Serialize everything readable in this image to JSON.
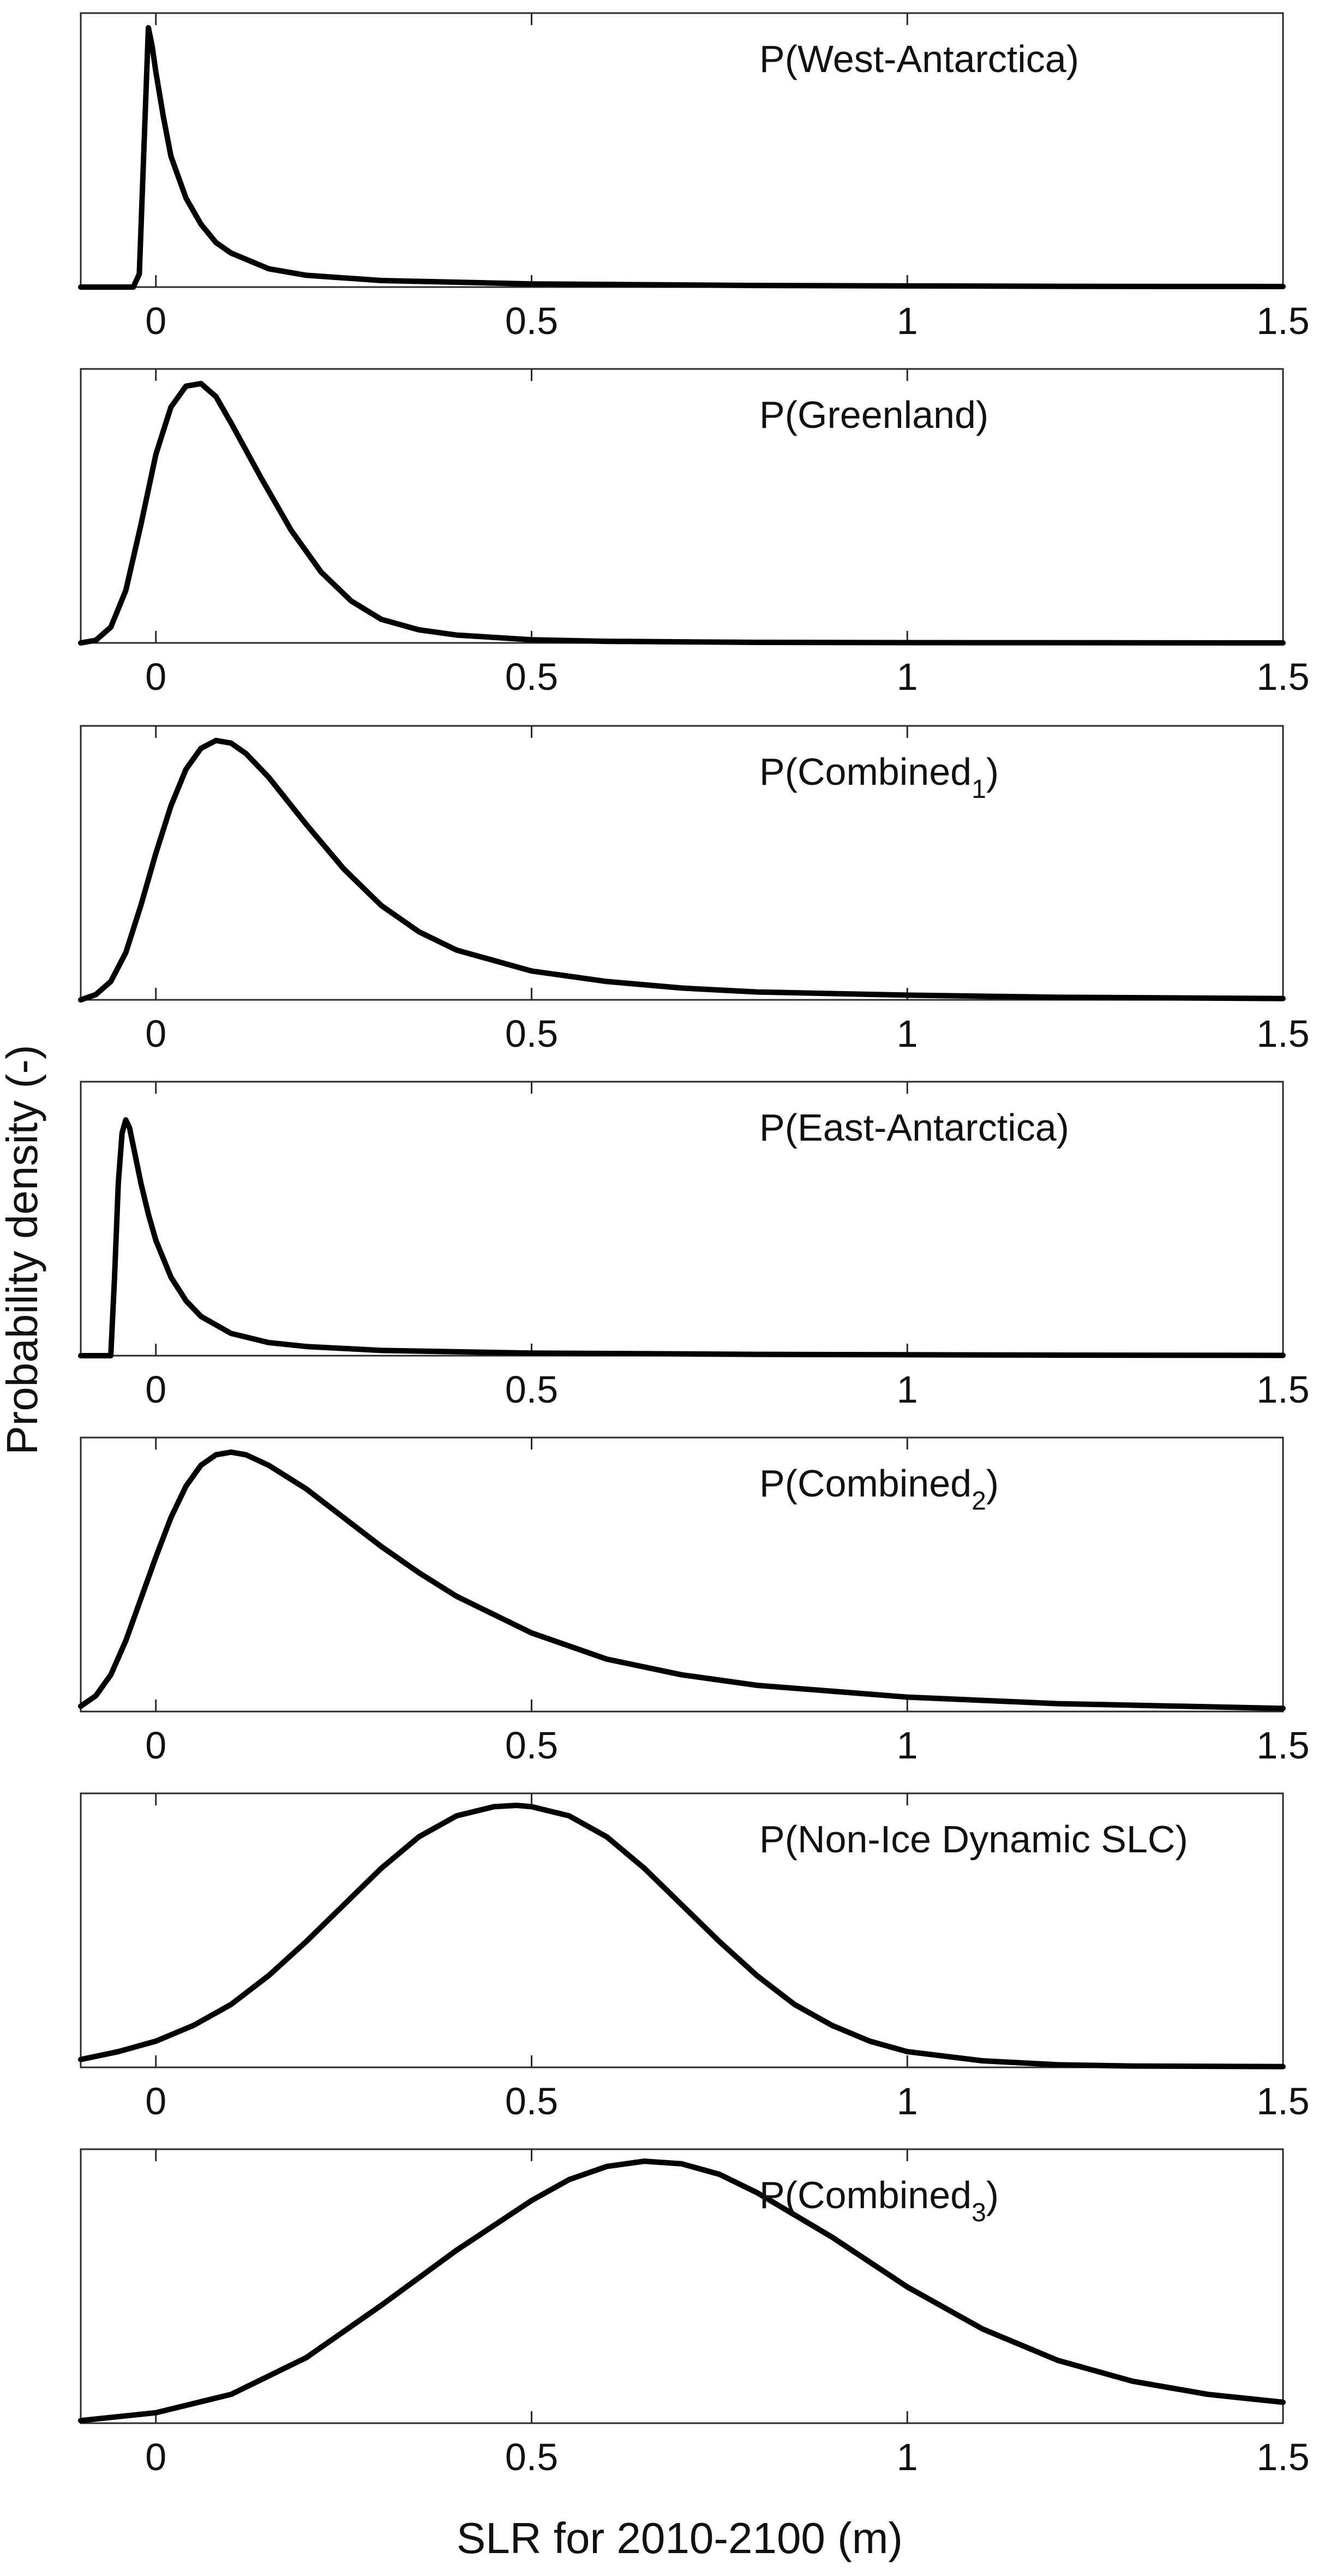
{
  "figure": {
    "ylabel": "Probability density (-)",
    "xlabel": "SLR for 2010-2100 (m)"
  },
  "chart_data": [
    {
      "type": "line",
      "title": "P(West-Antarctica)",
      "title_parts": {
        "main": "P(West-Antarctica)",
        "sub": "",
        "tail": ""
      },
      "xlim": [
        -0.1,
        1.5
      ],
      "ylim": [
        0,
        1
      ],
      "xticks": [
        0,
        0.5,
        1,
        1.5
      ],
      "xtick_labels": [
        "0",
        "0.5",
        "1",
        "1.5"
      ],
      "series": [
        {
          "name": "P(West-Antarctica)",
          "x": [
            -0.1,
            -0.03,
            -0.022,
            -0.015,
            -0.01,
            -0.005,
            0.0,
            0.01,
            0.02,
            0.04,
            0.06,
            0.08,
            0.1,
            0.15,
            0.2,
            0.3,
            0.5,
            0.8,
            1.2,
            1.5
          ],
          "y": [
            0,
            0,
            0.05,
            0.6,
            0.99,
            0.92,
            0.82,
            0.65,
            0.5,
            0.34,
            0.24,
            0.17,
            0.13,
            0.07,
            0.045,
            0.025,
            0.012,
            0.006,
            0.003,
            0.002
          ]
        }
      ]
    },
    {
      "type": "line",
      "title": "P(Greenland)",
      "title_parts": {
        "main": "P(Greenland)",
        "sub": "",
        "tail": ""
      },
      "xlim": [
        -0.1,
        1.5
      ],
      "ylim": [
        0,
        1
      ],
      "xticks": [
        0,
        0.5,
        1,
        1.5
      ],
      "xtick_labels": [
        "0",
        "0.5",
        "1",
        "1.5"
      ],
      "series": [
        {
          "name": "P(Greenland)",
          "x": [
            -0.1,
            -0.08,
            -0.06,
            -0.04,
            -0.02,
            0.0,
            0.02,
            0.04,
            0.06,
            0.08,
            0.1,
            0.14,
            0.18,
            0.22,
            0.26,
            0.3,
            0.35,
            0.4,
            0.5,
            0.6,
            0.8,
            1.0,
            1.5
          ],
          "y": [
            0,
            0.01,
            0.06,
            0.2,
            0.45,
            0.72,
            0.9,
            0.98,
            0.99,
            0.94,
            0.84,
            0.63,
            0.43,
            0.27,
            0.16,
            0.09,
            0.05,
            0.03,
            0.012,
            0.006,
            0.002,
            0.001,
            0
          ]
        }
      ]
    },
    {
      "type": "line",
      "title": "P(Combined1)",
      "title_parts": {
        "main": "P(Combined",
        "sub": "1",
        "tail": ")"
      },
      "xlim": [
        -0.1,
        1.5
      ],
      "ylim": [
        0,
        1
      ],
      "xticks": [
        0,
        0.5,
        1,
        1.5
      ],
      "xtick_labels": [
        "0",
        "0.5",
        "1",
        "1.5"
      ],
      "series": [
        {
          "name": "P(Combined1)",
          "x": [
            -0.1,
            -0.08,
            -0.06,
            -0.04,
            -0.02,
            0.0,
            0.02,
            0.04,
            0.06,
            0.08,
            0.1,
            0.12,
            0.15,
            0.2,
            0.25,
            0.3,
            0.35,
            0.4,
            0.5,
            0.6,
            0.7,
            0.8,
            1.0,
            1.2,
            1.5
          ],
          "y": [
            0,
            0.02,
            0.07,
            0.18,
            0.36,
            0.56,
            0.74,
            0.88,
            0.96,
            0.99,
            0.98,
            0.94,
            0.85,
            0.67,
            0.5,
            0.36,
            0.26,
            0.19,
            0.11,
            0.07,
            0.045,
            0.03,
            0.018,
            0.01,
            0.005
          ]
        }
      ]
    },
    {
      "type": "line",
      "title": "P(East-Antarctica)",
      "title_parts": {
        "main": "P(East-Antarctica)",
        "sub": "",
        "tail": ""
      },
      "xlim": [
        -0.1,
        1.5
      ],
      "ylim": [
        0,
        1
      ],
      "xticks": [
        0,
        0.5,
        1,
        1.5
      ],
      "xtick_labels": [
        "0",
        "0.5",
        "1",
        "1.5"
      ],
      "series": [
        {
          "name": "P(East-Antarctica)",
          "x": [
            -0.1,
            -0.06,
            -0.055,
            -0.05,
            -0.045,
            -0.04,
            -0.035,
            -0.03,
            -0.02,
            -0.01,
            0.0,
            0.02,
            0.04,
            0.06,
            0.1,
            0.15,
            0.2,
            0.3,
            0.5,
            0.8,
            1.2,
            1.5
          ],
          "y": [
            0,
            0,
            0.3,
            0.66,
            0.85,
            0.9,
            0.87,
            0.8,
            0.66,
            0.54,
            0.44,
            0.3,
            0.21,
            0.15,
            0.085,
            0.05,
            0.035,
            0.02,
            0.01,
            0.005,
            0.002,
            0.001
          ]
        }
      ]
    },
    {
      "type": "line",
      "title": "P(Combined2)",
      "title_parts": {
        "main": "P(Combined",
        "sub": "2",
        "tail": ")"
      },
      "xlim": [
        -0.1,
        1.5
      ],
      "ylim": [
        0,
        1
      ],
      "xticks": [
        0,
        0.5,
        1,
        1.5
      ],
      "xtick_labels": [
        "0",
        "0.5",
        "1",
        "1.5"
      ],
      "series": [
        {
          "name": "P(Combined2)",
          "x": [
            -0.1,
            -0.08,
            -0.06,
            -0.04,
            -0.02,
            0.0,
            0.02,
            0.04,
            0.06,
            0.08,
            0.1,
            0.12,
            0.15,
            0.2,
            0.25,
            0.3,
            0.35,
            0.4,
            0.5,
            0.6,
            0.7,
            0.8,
            1.0,
            1.2,
            1.5
          ],
          "y": [
            0.02,
            0.06,
            0.14,
            0.27,
            0.43,
            0.59,
            0.74,
            0.86,
            0.94,
            0.98,
            0.99,
            0.98,
            0.94,
            0.85,
            0.74,
            0.63,
            0.53,
            0.44,
            0.3,
            0.2,
            0.14,
            0.1,
            0.055,
            0.03,
            0.012
          ]
        }
      ]
    },
    {
      "type": "line",
      "title": "P(Non-Ice Dynamic SLC)",
      "title_parts": {
        "main": "P(Non-Ice Dynamic SLC)",
        "sub": "",
        "tail": ""
      },
      "xlim": [
        -0.1,
        1.5
      ],
      "ylim": [
        0,
        1
      ],
      "xticks": [
        0,
        0.5,
        1,
        1.5
      ],
      "xtick_labels": [
        "0",
        "0.5",
        "1",
        "1.5"
      ],
      "series": [
        {
          "name": "P(Non-Ice Dynamic SLC)",
          "x": [
            -0.1,
            -0.05,
            0.0,
            0.05,
            0.1,
            0.15,
            0.2,
            0.25,
            0.3,
            0.35,
            0.4,
            0.45,
            0.48,
            0.5,
            0.55,
            0.6,
            0.65,
            0.7,
            0.75,
            0.8,
            0.85,
            0.9,
            0.95,
            1.0,
            1.1,
            1.2,
            1.3,
            1.5
          ],
          "y": [
            0.03,
            0.06,
            0.1,
            0.16,
            0.24,
            0.35,
            0.48,
            0.62,
            0.76,
            0.88,
            0.96,
            0.995,
            1.0,
            0.995,
            0.96,
            0.88,
            0.76,
            0.62,
            0.48,
            0.35,
            0.24,
            0.16,
            0.1,
            0.06,
            0.025,
            0.01,
            0.005,
            0.003
          ]
        }
      ]
    },
    {
      "type": "line",
      "title": "P(Combined3)",
      "title_parts": {
        "main": "P(Combined",
        "sub": "3",
        "tail": ")"
      },
      "xlim": [
        -0.1,
        1.5
      ],
      "ylim": [
        0,
        1
      ],
      "xticks": [
        0,
        0.5,
        1,
        1.5
      ],
      "xtick_labels": [
        "0",
        "0.5",
        "1",
        "1.5"
      ],
      "series": [
        {
          "name": "P(Combined3)",
          "x": [
            -0.1,
            0.0,
            0.1,
            0.2,
            0.3,
            0.4,
            0.5,
            0.55,
            0.6,
            0.65,
            0.7,
            0.75,
            0.8,
            0.9,
            1.0,
            1.1,
            1.2,
            1.3,
            1.4,
            1.5
          ],
          "y": [
            0.01,
            0.04,
            0.11,
            0.25,
            0.45,
            0.66,
            0.85,
            0.93,
            0.98,
            1.0,
            0.99,
            0.95,
            0.88,
            0.71,
            0.52,
            0.36,
            0.24,
            0.16,
            0.11,
            0.08
          ]
        }
      ]
    }
  ]
}
